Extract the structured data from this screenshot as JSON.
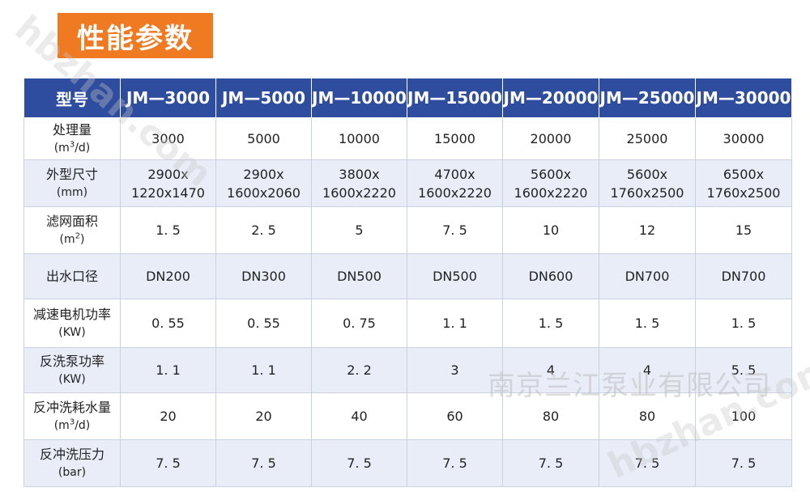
{
  "title": "性能参数",
  "watermark": "南京兰江泵业有限公司",
  "watermark_url": "hbzhan.com",
  "table": {
    "header_label": "型号",
    "models": [
      "JM—3000",
      "JM—5000",
      "JM—10000",
      "JM—15000",
      "JM—20000",
      "JM—25000",
      "JM—30000"
    ],
    "rows": [
      {
        "label": "处理量",
        "unit_pre": "(m",
        "unit_sup": "3",
        "unit_post": "/d)",
        "values": [
          "3000",
          "5000",
          "10000",
          "15000",
          "20000",
          "25000",
          "30000"
        ]
      },
      {
        "label": "外型尺寸",
        "unit_pre": "(mm)",
        "unit_sup": "",
        "unit_post": "",
        "values": [
          [
            "2900x",
            "1220x1470"
          ],
          [
            "2900x",
            "1600x2060"
          ],
          [
            "3800x",
            "1600x2220"
          ],
          [
            "4700x",
            "1600x2220"
          ],
          [
            "5600x",
            "1600x2220"
          ],
          [
            "5600x",
            "1760x2500"
          ],
          [
            "6500x",
            "1760x2500"
          ]
        ]
      },
      {
        "label": "滤网面积",
        "unit_pre": "(m",
        "unit_sup": "2",
        "unit_post": ")",
        "values": [
          "1. 5",
          "2. 5",
          "5",
          "7. 5",
          "10",
          "12",
          "15"
        ]
      },
      {
        "label": "出水口径",
        "unit_pre": "",
        "unit_sup": "",
        "unit_post": "",
        "values": [
          "DN200",
          "DN300",
          "DN500",
          "DN500",
          "DN600",
          "DN700",
          "DN700"
        ]
      },
      {
        "label": "减速电机功率",
        "unit_pre": "(KW)",
        "unit_sup": "",
        "unit_post": "",
        "values": [
          "0. 55",
          "0. 55",
          "0. 75",
          "1. 1",
          "1. 5",
          "1. 5",
          "1. 5"
        ]
      },
      {
        "label": "反洗泵功率",
        "unit_pre": "(KW)",
        "unit_sup": "",
        "unit_post": "",
        "values": [
          "1. 1",
          "1. 1",
          "2. 2",
          "3",
          "4",
          "4",
          "5. 5"
        ]
      },
      {
        "label": "反冲洗耗水量",
        "unit_pre": "(m",
        "unit_sup": "3",
        "unit_post": "/d)",
        "values": [
          "20",
          "20",
          "40",
          "60",
          "80",
          "80",
          "100"
        ]
      },
      {
        "label": "反冲洗压力",
        "unit_pre": "(bar)",
        "unit_sup": "",
        "unit_post": "",
        "values": [
          "7. 5",
          "7. 5",
          "7. 5",
          "7. 5",
          "7. 5",
          "7. 5",
          "7. 5"
        ]
      }
    ]
  },
  "colors": {
    "title_bg": "#f07a22",
    "header_bg": "#2f4d9e",
    "row_alt_bg": "#e8edf7"
  }
}
